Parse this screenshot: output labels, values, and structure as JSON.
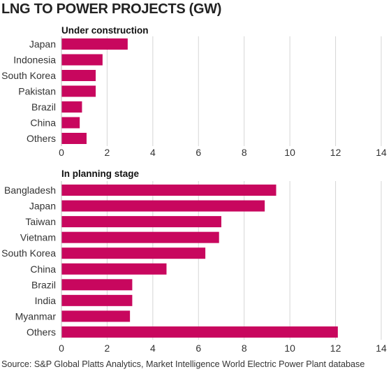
{
  "title": "LNG TO POWER PROJECTS (GW)",
  "source": "Source: S&P Global Platts Analytics, Market Intelligence World Electric Power Plant database",
  "colors": {
    "bar": "#c8075e",
    "grid": "#d6d6d6",
    "text": "#333333"
  },
  "chart_data": [
    {
      "type": "bar",
      "orientation": "horizontal",
      "subtitle": "Under construction",
      "categories": [
        "Japan",
        "Indonesia",
        "South Korea",
        "Pakistan",
        "Brazil",
        "China",
        "Others"
      ],
      "values": [
        2.9,
        1.8,
        1.5,
        1.5,
        0.9,
        0.8,
        1.1
      ],
      "xlim": [
        0,
        14
      ],
      "xticks": [
        0,
        2,
        4,
        6,
        8,
        10,
        12,
        14
      ],
      "grid": true
    },
    {
      "type": "bar",
      "orientation": "horizontal",
      "subtitle": "In planning stage",
      "categories": [
        "Bangladesh",
        "Japan",
        "Taiwan",
        "Vietnam",
        "South Korea",
        "China",
        "Brazil",
        "India",
        "Myanmar",
        "Others"
      ],
      "values": [
        9.4,
        8.9,
        7.0,
        6.9,
        6.3,
        4.6,
        3.1,
        3.1,
        3.0,
        12.1
      ],
      "xlim": [
        0,
        14
      ],
      "xticks": [
        0,
        2,
        4,
        6,
        8,
        10,
        12,
        14
      ],
      "grid": true
    }
  ]
}
